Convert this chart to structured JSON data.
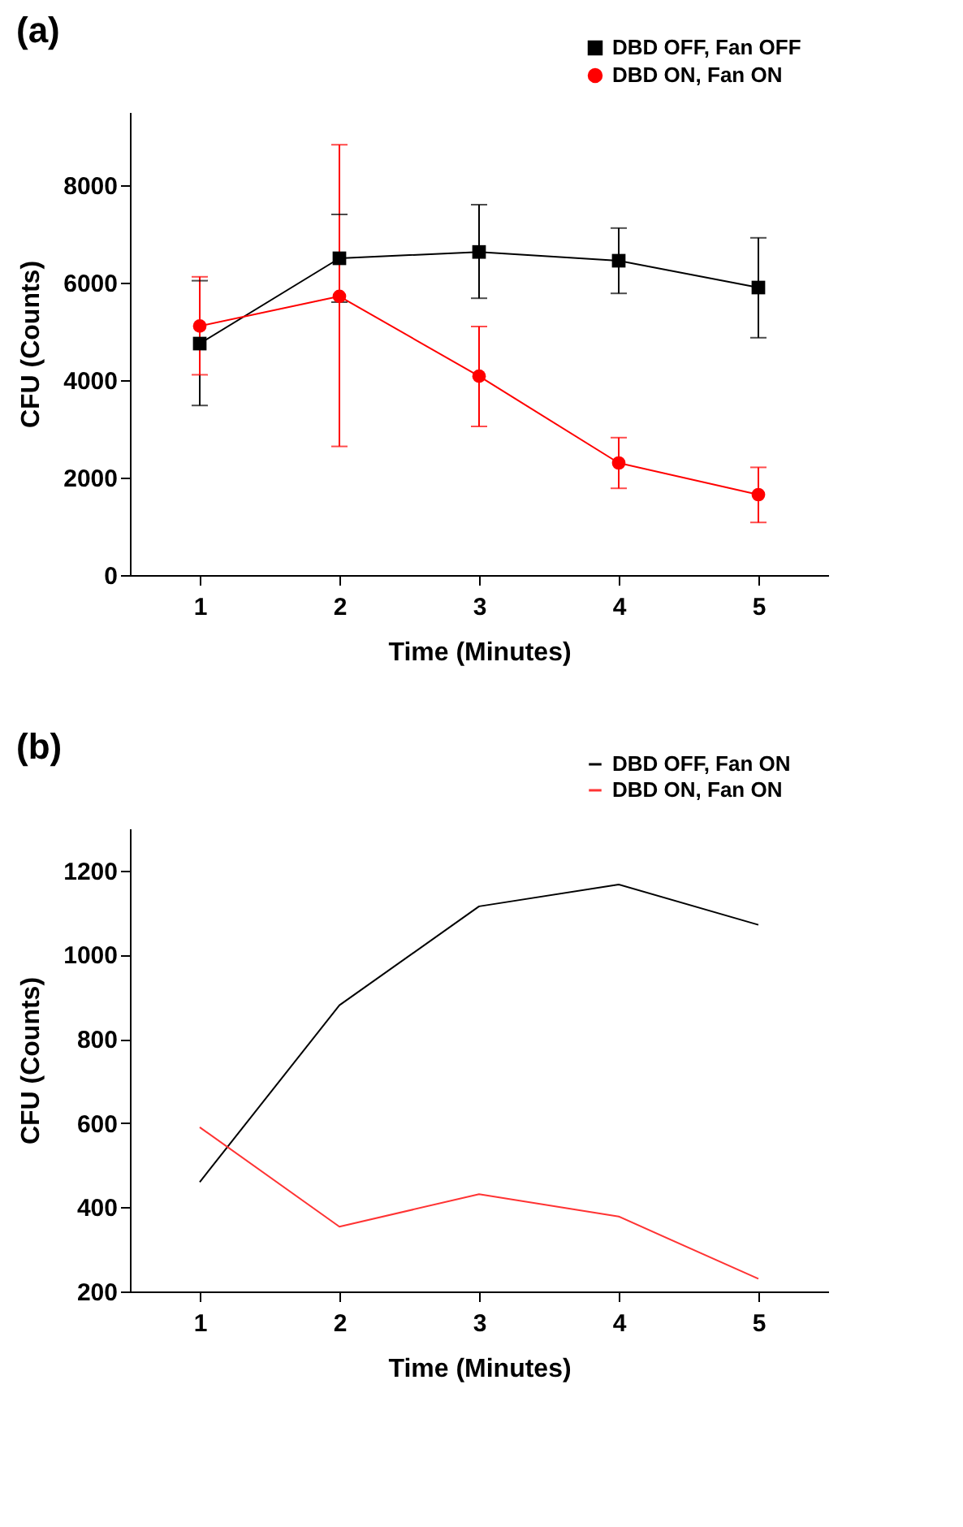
{
  "chart_data": [
    {
      "type": "line",
      "title": "(a)",
      "xlabel": "Time (Minutes)",
      "ylabel": "CFU (Counts)",
      "x": [
        1,
        2,
        3,
        4,
        5
      ],
      "xlim": [
        0.5,
        5.5
      ],
      "xticks": [
        1,
        2,
        3,
        4,
        5
      ],
      "ylim": [
        0,
        9500
      ],
      "yticks": [
        0,
        2000,
        4000,
        6000,
        8000
      ],
      "legend": "top right",
      "grid": false,
      "line_style": "solid",
      "series": [
        {
          "name": "DBD OFF, Fan OFF",
          "color": "#000000",
          "marker": "square",
          "values": [
            4750,
            6500,
            6630,
            6450,
            5900
          ],
          "errors": [
            [
              3480,
              6040
            ],
            [
              5600,
              7400
            ],
            [
              5680,
              7600
            ],
            [
              5780,
              7120
            ],
            [
              4870,
              6920
            ]
          ]
        },
        {
          "name": "DBD ON, Fan ON",
          "color": "#ff0000",
          "marker": "circle",
          "values": [
            5110,
            5720,
            4080,
            2300,
            1650
          ],
          "errors": [
            [
              4110,
              6120
            ],
            [
              2640,
              8830
            ],
            [
              3050,
              5100
            ],
            [
              1780,
              2820
            ],
            [
              1080,
              2210
            ]
          ]
        }
      ]
    },
    {
      "type": "line",
      "title": "(b)",
      "xlabel": "Time (Minutes)",
      "ylabel": "CFU (Counts)",
      "x": [
        1,
        2,
        3,
        4,
        5
      ],
      "xlim": [
        0.5,
        5.5
      ],
      "xticks": [
        1,
        2,
        3,
        4,
        5
      ],
      "ylim": [
        200,
        1300
      ],
      "yticks": [
        200,
        400,
        600,
        800,
        1000,
        1200
      ],
      "legend": "top right",
      "grid": false,
      "line_style": "solid",
      "marker": "none",
      "series": [
        {
          "name": "DBD OFF, Fan ON",
          "color": "#000000",
          "values": [
            460,
            880,
            1115,
            1167,
            1071
          ]
        },
        {
          "name": "DBD ON, Fan ON",
          "color": "#ff3333",
          "values": [
            590,
            354,
            431,
            378,
            230
          ]
        }
      ]
    }
  ]
}
